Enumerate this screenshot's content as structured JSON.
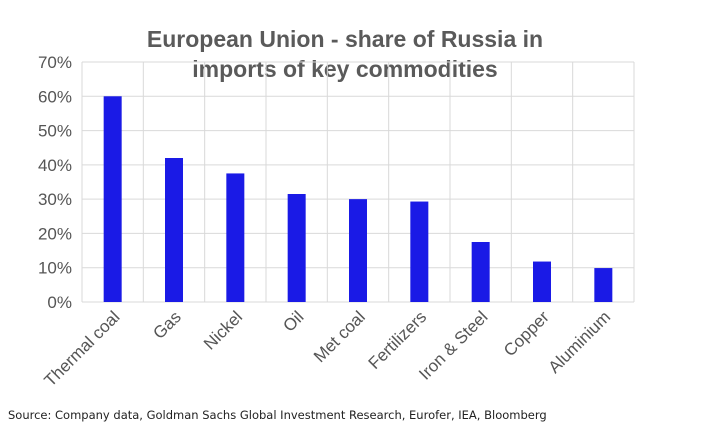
{
  "colors": {
    "bar": "#1a1ae6",
    "grid": "#d9d9d9",
    "tick_text": "#555555",
    "title_text": "#5a5a5a"
  },
  "chart_data": {
    "type": "bar",
    "title_lines": [
      "European Union - share of Russia  in",
      "imports of key commodities"
    ],
    "xlabel": "",
    "ylabel": "",
    "categories": [
      "Thermal coal",
      "Gas",
      "Nickel",
      "Oil",
      "Met coal",
      "Fertilizers",
      "Iron & Steel",
      "Copper",
      "Aluminium"
    ],
    "values": [
      60,
      42,
      37.5,
      31.5,
      30,
      29.3,
      17.5,
      11.8,
      9.9
    ],
    "value_unit": "%",
    "ylim": [
      0,
      70
    ],
    "yticks": [
      0,
      10,
      20,
      30,
      40,
      50,
      60,
      70
    ],
    "ytick_labels": [
      "0%",
      "10%",
      "20%",
      "30%",
      "40%",
      "50%",
      "60%",
      "70%"
    ],
    "grid": true,
    "legend": "none"
  },
  "source_note": "Source: Company data, Goldman Sachs Global Investment Research, Eurofer, IEA, Bloomberg"
}
